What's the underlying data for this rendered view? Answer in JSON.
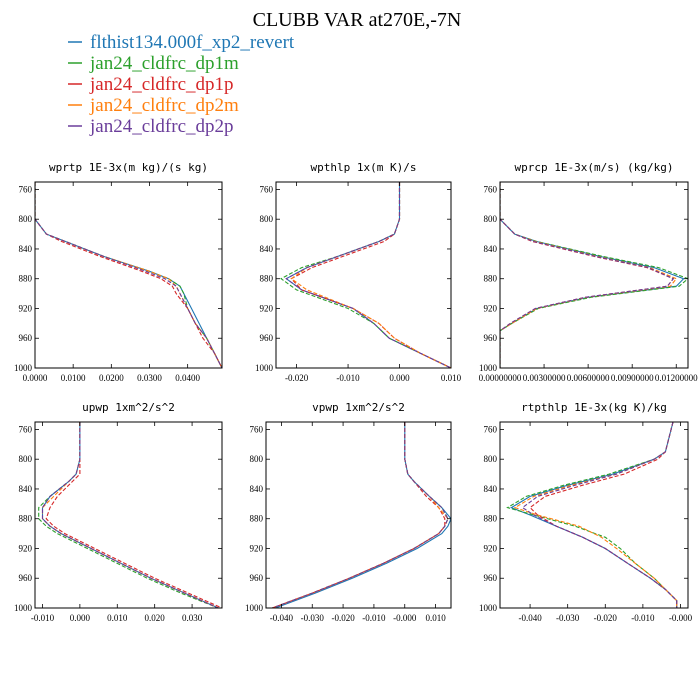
{
  "figure": {
    "title": "CLUBB VAR at270E,-7N"
  },
  "legend": [
    {
      "label": "flthist134.000f_xp2_revert",
      "color": "#1f77b4",
      "dash": "solid"
    },
    {
      "label": "jan24_cldfrc_dp1m",
      "color": "#2ca02c",
      "dash": "dashed"
    },
    {
      "label": "jan24_cldfrc_dp1p",
      "color": "#d62728",
      "dash": "dashed"
    },
    {
      "label": "jan24_cldfrc_dp2m",
      "color": "#ff7f0e",
      "dash": "dashed"
    },
    {
      "label": "jan24_cldfrc_dp2p",
      "color": "#6a3d9a",
      "dash": "dashed"
    }
  ],
  "chart_data": [
    {
      "type": "line",
      "title": "wprtp  1E-3x(m kg)/(s kg)",
      "xlim": [
        0.0,
        0.049
      ],
      "ylim": [
        1000,
        750
      ],
      "y_ticks": [
        760,
        800,
        840,
        880,
        920,
        960,
        1000
      ],
      "x_ticks": [
        "0.0000",
        "0.0100",
        "0.0200",
        "0.0300",
        "0.0400"
      ],
      "x_tick_values": [
        0.0,
        0.01,
        0.02,
        0.03,
        0.04
      ],
      "y": [
        750,
        800,
        820,
        830,
        850,
        870,
        880,
        890,
        900,
        920,
        940,
        960,
        980,
        1000
      ],
      "series": [
        {
          "name": "flthist134.000f_xp2_revert",
          "values": [
            0.0,
            0.0,
            0.003,
            0.008,
            0.018,
            0.03,
            0.035,
            0.038,
            0.039,
            0.041,
            0.043,
            0.045,
            0.047,
            0.049
          ]
        },
        {
          "name": "jan24_cldfrc_dp1m",
          "values": [
            0.0,
            0.0,
            0.003,
            0.008,
            0.018,
            0.03,
            0.035,
            0.038,
            0.039,
            0.04,
            0.042,
            0.045,
            0.047,
            0.049
          ]
        },
        {
          "name": "jan24_cldfrc_dp1p",
          "values": [
            0.0,
            0.0,
            0.003,
            0.007,
            0.017,
            0.028,
            0.033,
            0.036,
            0.037,
            0.04,
            0.042,
            0.044,
            0.047,
            0.049
          ]
        },
        {
          "name": "jan24_cldfrc_dp2m",
          "values": [
            0.0,
            0.0,
            0.003,
            0.008,
            0.018,
            0.03,
            0.035,
            0.037,
            0.038,
            0.04,
            0.042,
            0.045,
            0.047,
            0.049
          ]
        },
        {
          "name": "jan24_cldfrc_dp2p",
          "values": [
            0.0,
            0.0,
            0.003,
            0.008,
            0.018,
            0.029,
            0.034,
            0.037,
            0.038,
            0.04,
            0.042,
            0.045,
            0.047,
            0.049
          ]
        }
      ]
    },
    {
      "type": "line",
      "title": "wpthlp  1x(m K)/s",
      "xlim": [
        -0.024,
        0.01
      ],
      "ylim": [
        1000,
        750
      ],
      "y_ticks": [
        760,
        800,
        840,
        880,
        920,
        960,
        1000
      ],
      "x_ticks": [
        "-0.020",
        "-0.010",
        "0.000",
        "0.010"
      ],
      "x_tick_values": [
        -0.02,
        -0.01,
        0.0,
        0.01
      ],
      "y": [
        750,
        800,
        820,
        830,
        850,
        865,
        880,
        895,
        920,
        940,
        960,
        980,
        1000
      ],
      "series": [
        {
          "name": "flthist134.000f_xp2_revert",
          "values": [
            0.0,
            0.0,
            -0.001,
            -0.004,
            -0.012,
            -0.018,
            -0.022,
            -0.019,
            -0.009,
            -0.005,
            -0.002,
            0.004,
            0.01
          ]
        },
        {
          "name": "jan24_cldfrc_dp1m",
          "values": [
            0.0,
            0.0,
            -0.001,
            -0.004,
            -0.012,
            -0.019,
            -0.023,
            -0.02,
            -0.01,
            -0.005,
            -0.002,
            0.004,
            0.01
          ]
        },
        {
          "name": "jan24_cldfrc_dp1p",
          "values": [
            0.0,
            0.0,
            -0.001,
            -0.003,
            -0.011,
            -0.017,
            -0.021,
            -0.019,
            -0.009,
            -0.004,
            -0.001,
            0.004,
            0.01
          ]
        },
        {
          "name": "jan24_cldfrc_dp2m",
          "values": [
            0.0,
            0.0,
            -0.001,
            -0.004,
            -0.012,
            -0.018,
            -0.021,
            -0.018,
            -0.009,
            -0.004,
            -0.001,
            0.004,
            0.01
          ]
        },
        {
          "name": "jan24_cldfrc_dp2p",
          "values": [
            0.0,
            0.0,
            -0.001,
            -0.004,
            -0.012,
            -0.018,
            -0.022,
            -0.019,
            -0.009,
            -0.005,
            -0.002,
            0.004,
            0.01
          ]
        }
      ]
    },
    {
      "type": "line",
      "title": "wprcp  1E-3x(m/s) (kg/kg)",
      "xlim": [
        0.0,
        0.0128
      ],
      "ylim": [
        1000,
        750
      ],
      "y_ticks": [
        760,
        800,
        840,
        880,
        920,
        960,
        1000
      ],
      "x_ticks": [
        "0.00000000",
        "0.00300000",
        "0.00600000",
        "0.00900000",
        "0.01200000"
      ],
      "x_tick_values": [
        0.0,
        0.003,
        0.006,
        0.009,
        0.012
      ],
      "y": [
        750,
        800,
        820,
        830,
        850,
        865,
        880,
        890,
        905,
        920,
        940,
        950,
        960,
        1000
      ],
      "series": [
        {
          "name": "flthist134.000f_xp2_revert",
          "values": [
            0.0,
            0.0,
            0.001,
            0.0025,
            0.0068,
            0.0105,
            0.0125,
            0.012,
            0.006,
            0.0025,
            0.0008,
            0.0,
            0.0,
            0.0
          ]
        },
        {
          "name": "jan24_cldfrc_dp1m",
          "values": [
            0.0,
            0.0,
            0.001,
            0.0025,
            0.007,
            0.0108,
            0.0128,
            0.0122,
            0.0062,
            0.0026,
            0.0008,
            0.0,
            0.0,
            0.0
          ]
        },
        {
          "name": "jan24_cldfrc_dp1p",
          "values": [
            0.0,
            0.0,
            0.001,
            0.0022,
            0.0064,
            0.01,
            0.0118,
            0.0114,
            0.0058,
            0.0024,
            0.0007,
            0.0,
            0.0,
            0.0
          ]
        },
        {
          "name": "jan24_cldfrc_dp2m",
          "values": [
            0.0,
            0.0,
            0.001,
            0.0024,
            0.0066,
            0.0102,
            0.012,
            0.0116,
            0.0059,
            0.0025,
            0.0008,
            0.0,
            0.0,
            0.0
          ]
        },
        {
          "name": "jan24_cldfrc_dp2p",
          "values": [
            0.0,
            0.0,
            0.001,
            0.0023,
            0.0065,
            0.0101,
            0.0118,
            0.0114,
            0.0058,
            0.0024,
            0.0007,
            0.0,
            0.0,
            0.0
          ]
        }
      ]
    },
    {
      "type": "line",
      "title": "upwp  1xm^2/s^2",
      "xlim": [
        -0.012,
        0.038
      ],
      "ylim": [
        1000,
        750
      ],
      "y_ticks": [
        760,
        800,
        840,
        880,
        920,
        960,
        1000
      ],
      "x_ticks": [
        "-0.010",
        "0.000",
        "0.010",
        "0.020",
        "0.030"
      ],
      "x_tick_values": [
        -0.01,
        0.0,
        0.01,
        0.02,
        0.03
      ],
      "y": [
        750,
        800,
        820,
        830,
        850,
        865,
        880,
        890,
        900,
        920,
        940,
        960,
        980,
        1000
      ],
      "series": [
        {
          "name": "flthist134.000f_xp2_revert",
          "values": [
            0.0,
            0.0,
            -0.001,
            -0.003,
            -0.008,
            -0.01,
            -0.01,
            -0.008,
            -0.005,
            0.003,
            0.011,
            0.019,
            0.028,
            0.037
          ]
        },
        {
          "name": "jan24_cldfrc_dp1m",
          "values": [
            0.0,
            0.0,
            -0.001,
            -0.003,
            -0.008,
            -0.011,
            -0.011,
            -0.009,
            -0.006,
            0.002,
            0.01,
            0.018,
            0.027,
            0.037
          ]
        },
        {
          "name": "jan24_cldfrc_dp1p",
          "values": [
            0.0,
            0.0,
            0.0,
            -0.002,
            -0.006,
            -0.008,
            -0.009,
            -0.007,
            -0.004,
            0.004,
            0.012,
            0.02,
            0.029,
            0.038
          ]
        },
        {
          "name": "jan24_cldfrc_dp2m",
          "values": [
            0.0,
            0.0,
            -0.001,
            -0.003,
            -0.007,
            -0.01,
            -0.01,
            -0.008,
            -0.005,
            0.003,
            0.011,
            0.019,
            0.028,
            0.037
          ]
        },
        {
          "name": "jan24_cldfrc_dp2p",
          "values": [
            0.0,
            0.0,
            -0.001,
            -0.003,
            -0.008,
            -0.01,
            -0.01,
            -0.008,
            -0.005,
            0.003,
            0.011,
            0.019,
            0.028,
            0.037
          ]
        }
      ]
    },
    {
      "type": "line",
      "title": "vpwp  1xm^2/s^2",
      "xlim": [
        -0.045,
        0.015
      ],
      "ylim": [
        1000,
        750
      ],
      "y_ticks": [
        760,
        800,
        840,
        880,
        920,
        960,
        1000
      ],
      "x_ticks": [
        "-0.040",
        "-0.030",
        "-0.020",
        "-0.010",
        "-0.000",
        "0.010"
      ],
      "x_tick_values": [
        -0.04,
        -0.03,
        -0.02,
        -0.01,
        0.0,
        0.01
      ],
      "y": [
        750,
        800,
        820,
        830,
        850,
        865,
        880,
        890,
        900,
        920,
        940,
        960,
        980,
        1000
      ],
      "series": [
        {
          "name": "flthist134.000f_xp2_revert",
          "values": [
            0.0,
            0.0,
            0.001,
            0.003,
            0.008,
            0.012,
            0.015,
            0.014,
            0.012,
            0.004,
            -0.006,
            -0.017,
            -0.029,
            -0.042
          ]
        },
        {
          "name": "jan24_cldfrc_dp1m",
          "values": [
            0.0,
            0.0,
            0.001,
            0.003,
            0.008,
            0.012,
            0.014,
            0.013,
            0.011,
            0.003,
            -0.007,
            -0.018,
            -0.03,
            -0.043
          ]
        },
        {
          "name": "jan24_cldfrc_dp1p",
          "values": [
            0.0,
            0.0,
            0.001,
            0.003,
            0.007,
            0.011,
            0.013,
            0.013,
            0.011,
            0.003,
            -0.007,
            -0.018,
            -0.03,
            -0.043
          ]
        },
        {
          "name": "jan24_cldfrc_dp2m",
          "values": [
            0.0,
            0.0,
            0.001,
            0.003,
            0.008,
            0.011,
            0.014,
            0.013,
            0.011,
            0.003,
            -0.007,
            -0.018,
            -0.03,
            -0.043
          ]
        },
        {
          "name": "jan24_cldfrc_dp2p",
          "values": [
            0.0,
            0.0,
            0.001,
            0.003,
            0.008,
            0.012,
            0.014,
            0.013,
            0.011,
            0.003,
            -0.007,
            -0.018,
            -0.03,
            -0.043
          ]
        }
      ]
    },
    {
      "type": "line",
      "title": "rtpthlp  1E-3x(kg K)/kg",
      "xlim": [
        -0.048,
        0.002
      ],
      "ylim": [
        1000,
        750
      ],
      "y_ticks": [
        760,
        800,
        840,
        880,
        920,
        960,
        1000
      ],
      "x_ticks": [
        "-0.040",
        "-0.030",
        "-0.020",
        "-0.010",
        "-0.000"
      ],
      "x_tick_values": [
        -0.04,
        -0.03,
        -0.02,
        -0.01,
        0.0
      ],
      "y": [
        750,
        790,
        800,
        820,
        835,
        850,
        865,
        875,
        890,
        905,
        920,
        940,
        960,
        975,
        990,
        1000
      ],
      "series": [
        {
          "name": "flthist134.000f_xp2_revert",
          "values": [
            -0.002,
            -0.004,
            -0.007,
            -0.018,
            -0.03,
            -0.04,
            -0.045,
            -0.04,
            -0.033,
            -0.026,
            -0.02,
            -0.014,
            -0.008,
            -0.004,
            -0.001,
            -0.001
          ]
        },
        {
          "name": "jan24_cldfrc_dp1m",
          "values": [
            -0.002,
            -0.004,
            -0.007,
            -0.019,
            -0.031,
            -0.041,
            -0.046,
            -0.039,
            -0.028,
            -0.02,
            -0.016,
            -0.012,
            -0.007,
            -0.004,
            -0.001,
            -0.001
          ]
        },
        {
          "name": "jan24_cldfrc_dp1p",
          "values": [
            -0.002,
            -0.004,
            -0.006,
            -0.015,
            -0.026,
            -0.036,
            -0.04,
            -0.038,
            -0.033,
            -0.026,
            -0.02,
            -0.014,
            -0.008,
            -0.004,
            -0.001,
            -0.001
          ]
        },
        {
          "name": "jan24_cldfrc_dp2m",
          "values": [
            -0.002,
            -0.004,
            -0.007,
            -0.017,
            -0.029,
            -0.039,
            -0.044,
            -0.038,
            -0.027,
            -0.021,
            -0.017,
            -0.012,
            -0.007,
            -0.004,
            -0.001,
            -0.001
          ]
        },
        {
          "name": "jan24_cldfrc_dp2p",
          "values": [
            -0.002,
            -0.004,
            -0.007,
            -0.017,
            -0.028,
            -0.038,
            -0.042,
            -0.039,
            -0.033,
            -0.026,
            -0.02,
            -0.014,
            -0.008,
            -0.004,
            -0.001,
            -0.001
          ]
        }
      ]
    }
  ]
}
